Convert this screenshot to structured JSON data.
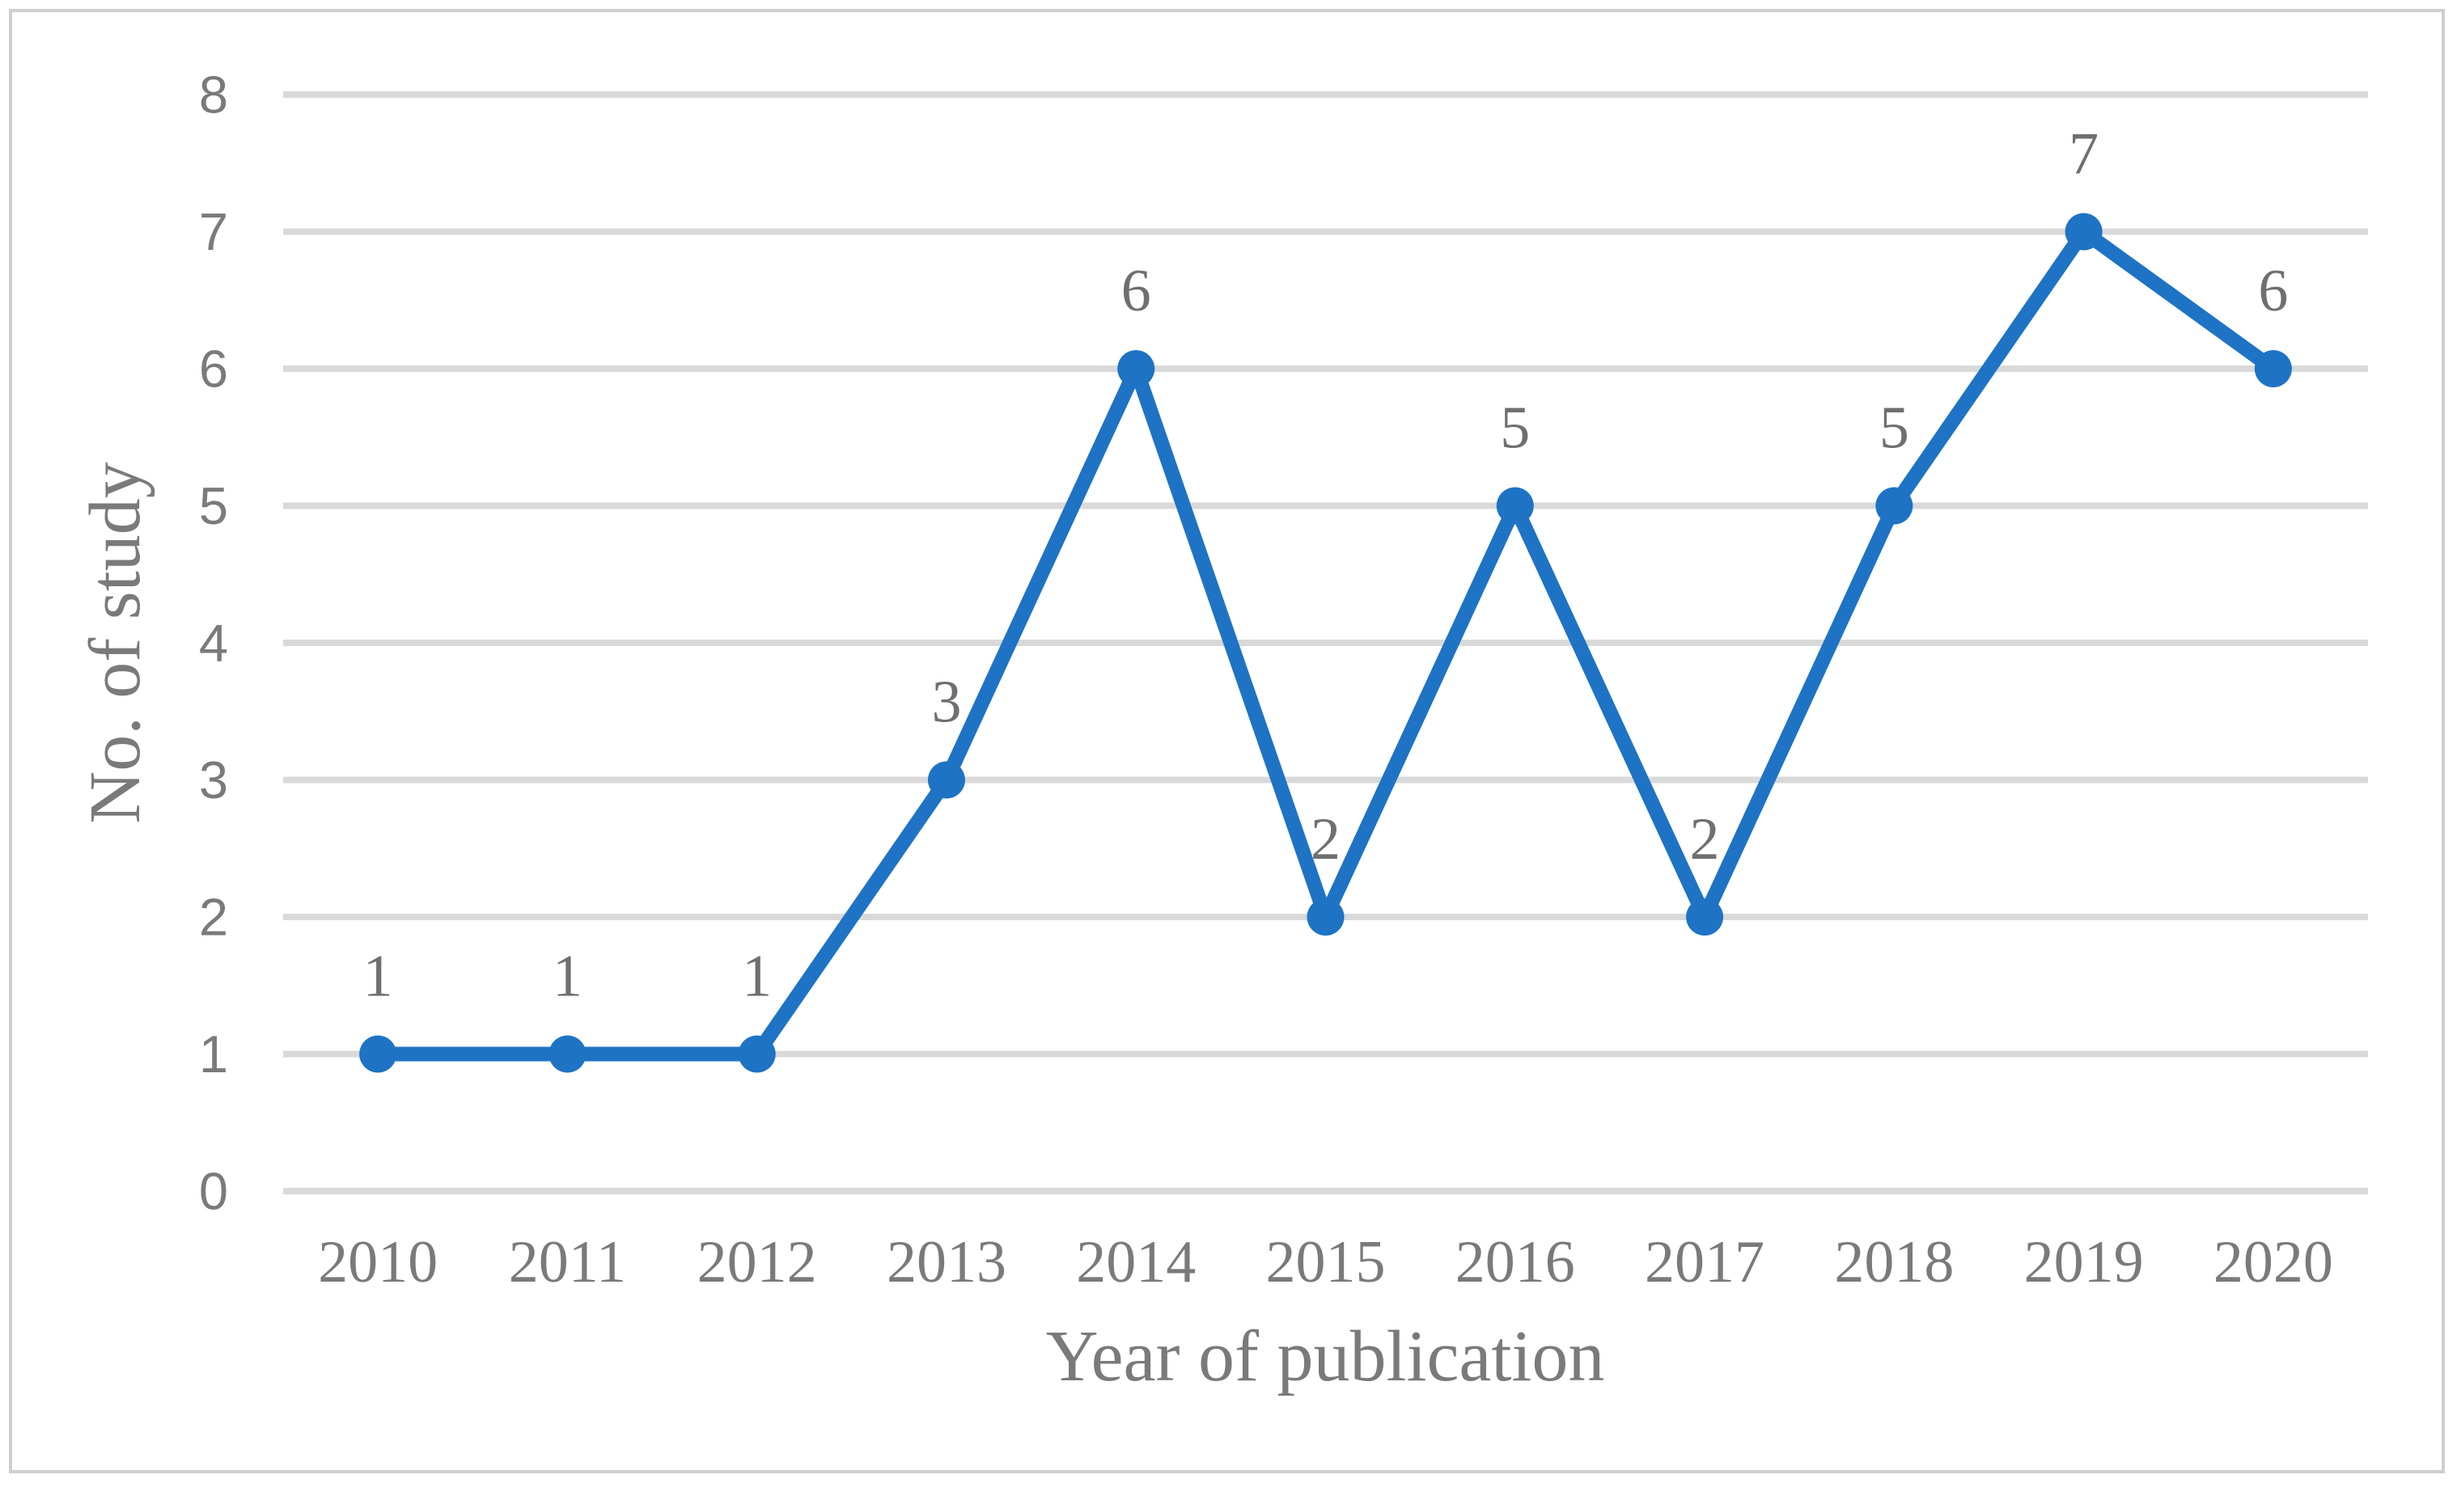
{
  "chart_data": {
    "type": "line",
    "categories": [
      "2010",
      "2011",
      "2012",
      "2013",
      "2014",
      "2015",
      "2016",
      "2017",
      "2018",
      "2019",
      "2020"
    ],
    "series": [
      {
        "name": "No. of study",
        "values": [
          1,
          1,
          1,
          3,
          6,
          2,
          5,
          2,
          5,
          7,
          6
        ]
      }
    ],
    "title": "",
    "xlabel": "Year of publication",
    "ylabel": "No. of study",
    "ylim": [
      0,
      8
    ],
    "ytick_step": 1,
    "yticks": [
      0,
      1,
      2,
      3,
      4,
      5,
      6,
      7,
      8
    ],
    "grid": "horizontal-only",
    "legend_position": "none",
    "data_labels_shown": true,
    "marker_shape": "circle"
  },
  "colors": {
    "series_line": "#1E73C4",
    "marker_fill": "#1E73C4",
    "gridline": "#D9D9D9",
    "figure_border": "#CFCFCF",
    "tick_text": "#7A7A7A",
    "data_label_text": "#6F6F6F",
    "axis_title_text": "#7A7A7A",
    "background": "#FFFFFF"
  }
}
